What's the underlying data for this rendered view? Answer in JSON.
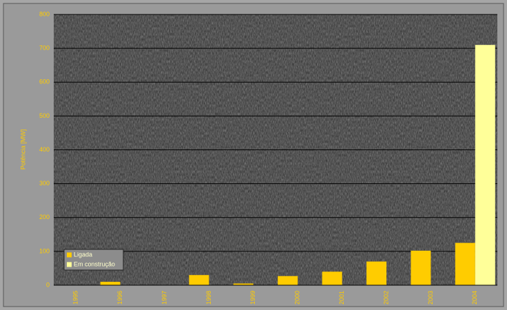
{
  "chart_data": {
    "type": "bar",
    "y_label": "Potência [MW]",
    "categories": [
      "1995",
      "1996",
      "1997",
      "1998",
      "1999",
      "2000",
      "2001",
      "2002",
      "2003",
      "2004"
    ],
    "series": [
      {
        "name": "Ligada",
        "color": "#ffcc00",
        "values": [
          0,
          10,
          0,
          30,
          5,
          27,
          40,
          70,
          102,
          125
        ]
      },
      {
        "name": "Em construção",
        "color": "#ffff99",
        "values": [
          0,
          0,
          0,
          0,
          0,
          0,
          0,
          0,
          0,
          710
        ]
      }
    ],
    "ylim": [
      0,
      800
    ],
    "yticks": [
      0,
      100,
      200,
      300,
      400,
      500,
      600,
      700,
      800
    ],
    "grid": true,
    "legend": "bottom-left"
  }
}
